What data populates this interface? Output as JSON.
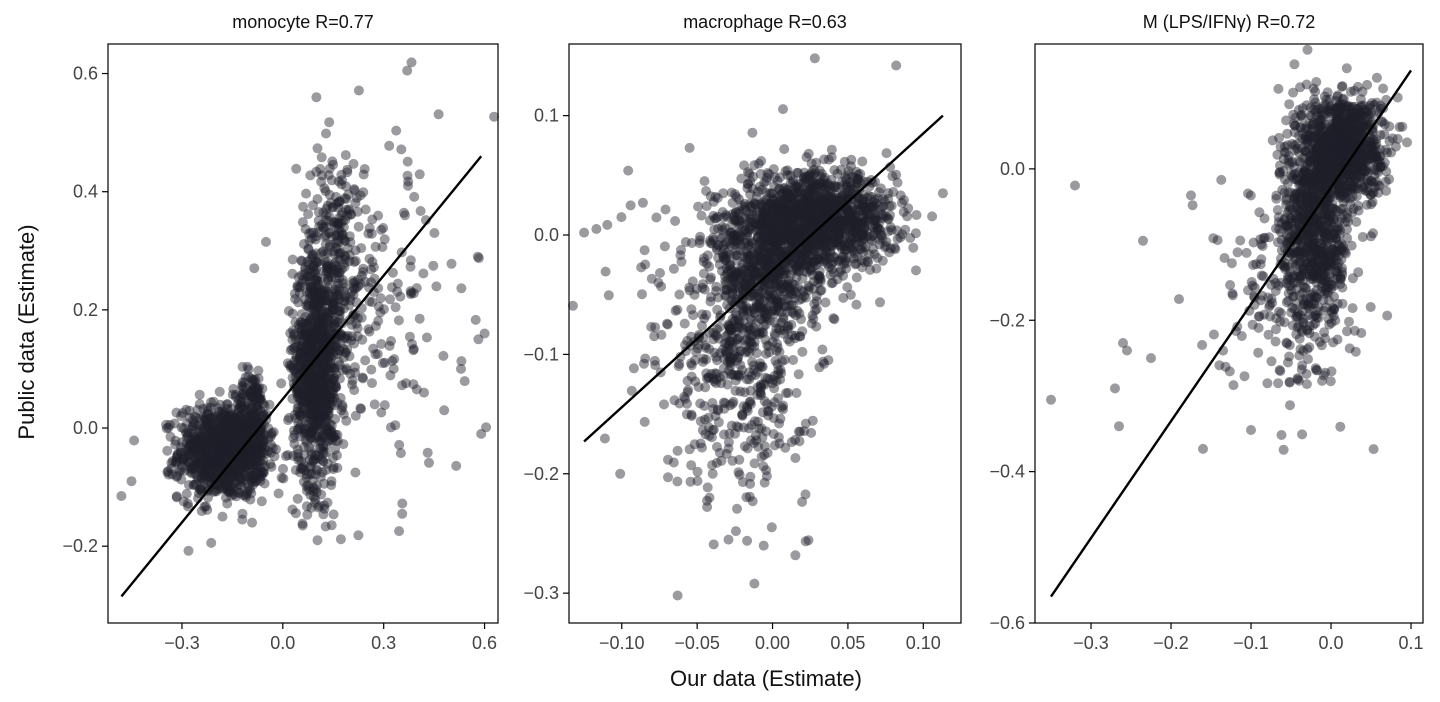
{
  "figure": {
    "ylabel": "Public data (Estimate)",
    "xlabel": "Our data (Estimate)",
    "point_color": "#1e1e2a",
    "line_color": "#000000"
  },
  "chart_data": [
    {
      "type": "scatter",
      "title": "monocyte R=0.77",
      "xlim": [
        -0.52,
        0.64
      ],
      "ylim": [
        -0.33,
        0.65
      ],
      "xticks": [
        -0.3,
        0.0,
        0.3,
        0.6
      ],
      "xtick_labels": [
        "−0.3",
        "0.0",
        "0.3",
        "0.6"
      ],
      "yticks": [
        -0.2,
        0.0,
        0.2,
        0.4,
        0.6
      ],
      "ytick_labels": [
        "−0.2",
        "0.0",
        "0.2",
        "0.4",
        "0.6"
      ],
      "fit_line": {
        "x": [
          -0.48,
          0.59
        ],
        "y": [
          -0.285,
          0.46
        ]
      },
      "clusters": [
        {
          "cx": -0.18,
          "cy": -0.04,
          "sx": 0.065,
          "sy": 0.04,
          "n": 900
        },
        {
          "cx": -0.09,
          "cy": 0.0,
          "sx": 0.025,
          "sy": 0.05,
          "n": 250
        },
        {
          "cx": 0.1,
          "cy": 0.1,
          "sx": 0.035,
          "sy": 0.1,
          "n": 900
        },
        {
          "cx": 0.16,
          "cy": 0.28,
          "sx": 0.05,
          "sy": 0.1,
          "n": 250
        },
        {
          "cx": 0.3,
          "cy": 0.2,
          "sx": 0.12,
          "sy": 0.15,
          "n": 150
        }
      ],
      "outliers": [
        [
          -0.48,
          -0.115
        ],
        [
          -0.45,
          -0.09
        ],
        [
          0.37,
          0.605
        ],
        [
          0.58,
          0.29
        ],
        [
          0.6,
          0.16
        ],
        [
          0.59,
          -0.01
        ],
        [
          0.53,
          0.1
        ],
        [
          0.48,
          0.03
        ],
        [
          0.42,
          0.06
        ],
        [
          0.1,
          0.56
        ],
        [
          -0.05,
          0.315
        ]
      ]
    },
    {
      "type": "scatter",
      "title": "macrophage R=0.63",
      "xlim": [
        -0.135,
        0.125
      ],
      "ylim": [
        -0.325,
        0.16
      ],
      "xticks": [
        -0.1,
        -0.05,
        0.0,
        0.05,
        0.1
      ],
      "xtick_labels": [
        "−0.10",
        "−0.05",
        "0.00",
        "0.05",
        "0.10"
      ],
      "yticks": [
        -0.3,
        -0.2,
        -0.1,
        0.0,
        0.1
      ],
      "ytick_labels": [
        "−0.3",
        "−0.2",
        "−0.1",
        "0.0",
        "0.1"
      ],
      "fit_line": {
        "x": [
          -0.125,
          0.113
        ],
        "y": [
          -0.173,
          0.1
        ]
      },
      "clusters": [
        {
          "cx": 0.03,
          "cy": 0.012,
          "sx": 0.025,
          "sy": 0.02,
          "n": 1200
        },
        {
          "cx": -0.005,
          "cy": -0.03,
          "sx": 0.018,
          "sy": 0.03,
          "n": 600
        },
        {
          "cx": -0.02,
          "cy": -0.12,
          "sx": 0.022,
          "sy": 0.05,
          "n": 350
        },
        {
          "cx": -0.04,
          "cy": -0.06,
          "sx": 0.035,
          "sy": 0.06,
          "n": 150
        }
      ],
      "outliers": [
        [
          0.028,
          0.148
        ],
        [
          0.082,
          0.142
        ],
        [
          -0.125,
          0.002
        ],
        [
          -0.063,
          -0.302
        ],
        [
          -0.012,
          -0.292
        ],
        [
          0.113,
          0.035
        ],
        [
          -0.086,
          0.027
        ]
      ]
    },
    {
      "type": "scatter",
      "title": "M (LPS/IFNγ) R=0.72",
      "xlim": [
        -0.37,
        0.115
      ],
      "ylim": [
        -0.6,
        0.165
      ],
      "xticks": [
        -0.3,
        -0.2,
        -0.1,
        0.0,
        0.1
      ],
      "xtick_labels": [
        "−0.3",
        "−0.2",
        "−0.1",
        "0.0",
        "0.1"
      ],
      "yticks": [
        -0.6,
        -0.4,
        -0.2,
        0.0
      ],
      "ytick_labels": [
        "−0.6",
        "−0.4",
        "−0.2",
        "0.0"
      ],
      "fit_line": {
        "x": [
          -0.35,
          0.1
        ],
        "y": [
          -0.565,
          0.13
        ]
      },
      "clusters": [
        {
          "cx": 0.015,
          "cy": 0.03,
          "sx": 0.025,
          "sy": 0.035,
          "n": 900
        },
        {
          "cx": -0.02,
          "cy": -0.08,
          "sx": 0.022,
          "sy": 0.065,
          "n": 700
        },
        {
          "cx": -0.055,
          "cy": -0.17,
          "sx": 0.04,
          "sy": 0.07,
          "n": 200
        }
      ],
      "outliers": [
        [
          -0.35,
          -0.305
        ],
        [
          -0.32,
          -0.022
        ],
        [
          -0.265,
          -0.34
        ],
        [
          -0.27,
          -0.29
        ],
        [
          -0.26,
          -0.23
        ],
        [
          -0.255,
          -0.24
        ],
        [
          -0.235,
          -0.095
        ],
        [
          -0.225,
          -0.25
        ],
        [
          -0.19,
          -0.172
        ],
        [
          -0.175,
          -0.035
        ],
        [
          -0.173,
          -0.048
        ],
        [
          -0.16,
          -0.37
        ],
        [
          -0.1,
          -0.345
        ],
        [
          0.095,
          0.035
        ]
      ]
    }
  ]
}
